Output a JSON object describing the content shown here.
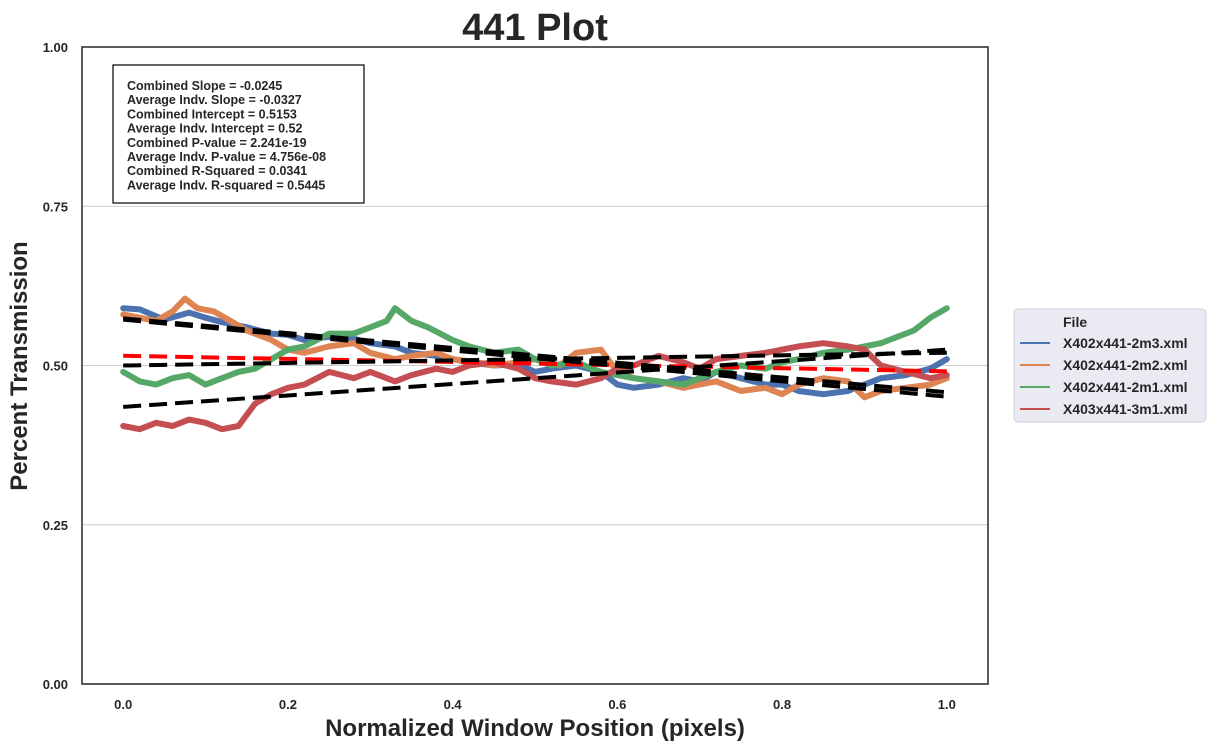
{
  "chart_data": {
    "type": "line",
    "title": "441 Plot",
    "xlabel": "Normalized Window Position (pixels)",
    "ylabel": "Percent Transmission",
    "xlim": [
      -0.05,
      1.05
    ],
    "ylim": [
      0.0,
      1.0
    ],
    "x_ticks": [
      0.0,
      0.2,
      0.4,
      0.6,
      0.8,
      1.0
    ],
    "x_tick_labels": [
      "0.0",
      "0.2",
      "0.4",
      "0.6",
      "0.8",
      "1.0"
    ],
    "y_ticks": [
      0.0,
      0.25,
      0.5,
      0.75,
      1.0
    ],
    "y_tick_labels": [
      "0.00",
      "0.25",
      "0.50",
      "0.75",
      "1.00"
    ],
    "grid": "horizontal",
    "legend": {
      "title": "File",
      "placement": "outside-right"
    },
    "stats": [
      "Combined Slope = -0.0245",
      "Average Indv. Slope = -0.0327",
      "Combined Intercept = 0.5153",
      "Average Indv. Intercept = 0.52",
      "Combined P-value = 2.241e-19",
      "Average Indv. P-value = 4.756e-08",
      "Combined R-Squared = 0.0341",
      "Average Indv. R-squared = 0.5445"
    ],
    "series": [
      {
        "name": "X402x441-2m3.xml",
        "color": "#4c72b0",
        "x": [
          0.0,
          0.02,
          0.05,
          0.08,
          0.1,
          0.12,
          0.15,
          0.18,
          0.2,
          0.22,
          0.25,
          0.28,
          0.3,
          0.33,
          0.35,
          0.38,
          0.4,
          0.42,
          0.45,
          0.48,
          0.5,
          0.52,
          0.55,
          0.58,
          0.6,
          0.62,
          0.65,
          0.68,
          0.7,
          0.72,
          0.75,
          0.78,
          0.8,
          0.82,
          0.85,
          0.88,
          0.9,
          0.92,
          0.95,
          0.98,
          1.0
        ],
        "y": [
          0.59,
          0.588,
          0.572,
          0.583,
          0.575,
          0.568,
          0.56,
          0.55,
          0.548,
          0.54,
          0.545,
          0.542,
          0.535,
          0.53,
          0.52,
          0.515,
          0.51,
          0.505,
          0.5,
          0.502,
          0.49,
          0.495,
          0.5,
          0.49,
          0.47,
          0.465,
          0.47,
          0.48,
          0.475,
          0.49,
          0.48,
          0.47,
          0.47,
          0.46,
          0.455,
          0.46,
          0.47,
          0.48,
          0.485,
          0.495,
          0.51
        ],
        "fit": [
          0.572,
          0.451
        ]
      },
      {
        "name": "X402x441-2m2.xml",
        "color": "#dd8452",
        "x": [
          0.0,
          0.02,
          0.04,
          0.06,
          0.075,
          0.09,
          0.11,
          0.13,
          0.15,
          0.18,
          0.2,
          0.22,
          0.25,
          0.28,
          0.3,
          0.33,
          0.35,
          0.38,
          0.4,
          0.43,
          0.45,
          0.48,
          0.5,
          0.53,
          0.55,
          0.58,
          0.6,
          0.62,
          0.65,
          0.68,
          0.7,
          0.72,
          0.75,
          0.78,
          0.8,
          0.82,
          0.85,
          0.88,
          0.9,
          0.92,
          0.95,
          0.98,
          1.0
        ],
        "y": [
          0.58,
          0.575,
          0.57,
          0.585,
          0.605,
          0.59,
          0.585,
          0.57,
          0.555,
          0.54,
          0.525,
          0.52,
          0.53,
          0.535,
          0.52,
          0.51,
          0.515,
          0.52,
          0.51,
          0.505,
          0.5,
          0.505,
          0.51,
          0.5,
          0.52,
          0.525,
          0.49,
          0.48,
          0.475,
          0.465,
          0.47,
          0.475,
          0.46,
          0.465,
          0.455,
          0.47,
          0.48,
          0.475,
          0.45,
          0.46,
          0.465,
          0.47,
          0.48
        ],
        "fit": [
          0.574,
          0.458
        ]
      },
      {
        "name": "X402x441-2m1.xml",
        "color": "#55a868",
        "x": [
          0.0,
          0.02,
          0.04,
          0.06,
          0.08,
          0.1,
          0.12,
          0.14,
          0.16,
          0.18,
          0.2,
          0.22,
          0.25,
          0.28,
          0.3,
          0.32,
          0.33,
          0.35,
          0.37,
          0.4,
          0.42,
          0.45,
          0.48,
          0.5,
          0.52,
          0.55,
          0.58,
          0.6,
          0.62,
          0.65,
          0.68,
          0.7,
          0.72,
          0.75,
          0.78,
          0.8,
          0.82,
          0.85,
          0.88,
          0.9,
          0.92,
          0.94,
          0.96,
          0.98,
          1.0
        ],
        "y": [
          0.49,
          0.475,
          0.47,
          0.48,
          0.485,
          0.47,
          0.48,
          0.49,
          0.495,
          0.51,
          0.525,
          0.53,
          0.55,
          0.55,
          0.56,
          0.57,
          0.59,
          0.57,
          0.56,
          0.54,
          0.53,
          0.52,
          0.525,
          0.51,
          0.5,
          0.505,
          0.49,
          0.485,
          0.48,
          0.475,
          0.47,
          0.48,
          0.49,
          0.5,
          0.495,
          0.505,
          0.51,
          0.52,
          0.525,
          0.53,
          0.535,
          0.545,
          0.555,
          0.575,
          0.59
        ],
        "fit": [
          0.5,
          0.52
        ]
      },
      {
        "name": "X403x441-3m1.xml",
        "color": "#c44e52",
        "x": [
          0.0,
          0.02,
          0.04,
          0.06,
          0.08,
          0.1,
          0.12,
          0.14,
          0.16,
          0.18,
          0.2,
          0.22,
          0.25,
          0.28,
          0.3,
          0.33,
          0.35,
          0.38,
          0.4,
          0.42,
          0.45,
          0.48,
          0.5,
          0.52,
          0.55,
          0.58,
          0.6,
          0.62,
          0.65,
          0.68,
          0.7,
          0.72,
          0.75,
          0.78,
          0.8,
          0.82,
          0.85,
          0.88,
          0.9,
          0.92,
          0.95,
          0.98,
          1.0
        ],
        "y": [
          0.405,
          0.4,
          0.41,
          0.405,
          0.415,
          0.41,
          0.4,
          0.405,
          0.44,
          0.455,
          0.465,
          0.47,
          0.49,
          0.48,
          0.49,
          0.475,
          0.485,
          0.495,
          0.49,
          0.5,
          0.505,
          0.495,
          0.48,
          0.475,
          0.47,
          0.48,
          0.495,
          0.5,
          0.515,
          0.505,
          0.495,
          0.51,
          0.515,
          0.52,
          0.525,
          0.53,
          0.535,
          0.53,
          0.525,
          0.5,
          0.49,
          0.48,
          0.485
        ],
        "fit": [
          0.435,
          0.525
        ]
      }
    ],
    "combined_fit": {
      "color": "#ff0000",
      "x": [
        0.0,
        1.0
      ],
      "y": [
        0.5153,
        0.4908
      ]
    }
  }
}
